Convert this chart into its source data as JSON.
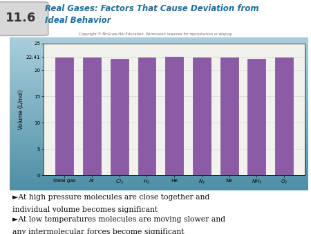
{
  "categories": [
    "Ideal gas",
    "Ar",
    "Cl₂",
    "H₂",
    "He",
    "N₂",
    "Ne",
    "NH₃",
    "O₂"
  ],
  "values": [
    22.41,
    22.41,
    22.06,
    22.41,
    22.47,
    22.4,
    22.41,
    22.08,
    22.4
  ],
  "bar_color": "#8B5CA5",
  "bar_edgecolor": "#7a4e94",
  "ylim": [
    0,
    25
  ],
  "yticks": [
    0,
    5,
    10,
    15,
    20,
    22.41,
    25
  ],
  "ytick_labels": [
    "0",
    "5",
    "10",
    "15",
    "20",
    "22.41",
    "25"
  ],
  "ylabel": "Volume (L/mol)",
  "copyright_text": "Copyright © McGraw-Hill Education. Permission required for reproduction or display.",
  "title_number": "11.6",
  "title_text": "Real Gases: Factors That Cause Deviation from\nIdeal Behavior",
  "bullet1_arrow": "►At high pressure molecules are close together and",
  "bullet1_cont": "individual volume becomes significant",
  "bullet2_arrow": "►At low temperatures molecules are moving slower and",
  "bullet2_cont": "any intermolecular forces become significant",
  "grad_top": "#aacfdc",
  "grad_bottom": "#4e8fa6",
  "chart_bg": "#f2f2ec",
  "outer_bg": "#ffffff",
  "header_box_color": "#d8d8d8",
  "header_box_edge": "#b0b0b0",
  "title_color": "#1a6ea0",
  "number_color": "#333333",
  "strip_color": "#5b9db8"
}
